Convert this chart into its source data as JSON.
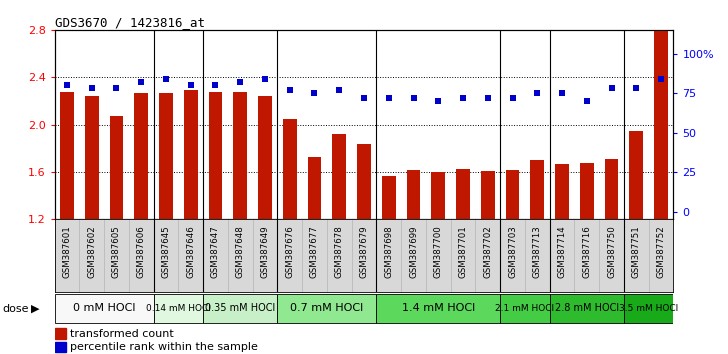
{
  "title": "GDS3670 / 1423816_at",
  "samples": [
    "GSM387601",
    "GSM387602",
    "GSM387605",
    "GSM387606",
    "GSM387645",
    "GSM387646",
    "GSM387647",
    "GSM387648",
    "GSM387649",
    "GSM387676",
    "GSM387677",
    "GSM387678",
    "GSM387679",
    "GSM387698",
    "GSM387699",
    "GSM387700",
    "GSM387701",
    "GSM387702",
    "GSM387703",
    "GSM387713",
    "GSM387714",
    "GSM387716",
    "GSM387750",
    "GSM387751",
    "GSM387752"
  ],
  "bar_values": [
    2.28,
    2.24,
    2.07,
    2.27,
    2.27,
    2.29,
    2.28,
    2.28,
    2.24,
    2.05,
    1.73,
    1.92,
    1.84,
    1.57,
    1.62,
    1.6,
    1.63,
    1.61,
    1.62,
    1.7,
    1.67,
    1.68,
    1.71,
    1.95,
    2.8
  ],
  "percentile_values": [
    80,
    78,
    78,
    82,
    84,
    80,
    80,
    82,
    84,
    77,
    75,
    77,
    72,
    72,
    72,
    70,
    72,
    72,
    72,
    75,
    75,
    70,
    78,
    78,
    84
  ],
  "group_labels": [
    "0 mM HOCl",
    "0.14 mM HOCl",
    "0.35 mM HOCl",
    "0.7 mM HOCl",
    "1.4 mM HOCl",
    "2.1 mM HOCl",
    "2.8 mM HOCl",
    "3.5 mM HOCl"
  ],
  "group_counts": [
    4,
    2,
    3,
    4,
    5,
    2,
    3,
    2
  ],
  "group_colors": [
    "#f8f8f8",
    "#dff8df",
    "#c8f0c8",
    "#90e890",
    "#5cd85c",
    "#44cc44",
    "#2ebc2e",
    "#18aa18"
  ],
  "ylim": [
    1.2,
    2.8
  ],
  "yticks": [
    1.2,
    1.6,
    2.0,
    2.4,
    2.8
  ],
  "right_yticks": [
    0,
    25,
    50,
    75,
    100
  ],
  "right_ytick_labels": [
    "0",
    "25",
    "50",
    "75",
    "100%"
  ],
  "bar_color": "#c01800",
  "dot_color": "#0000cc",
  "sample_bg_color": "#d8d8d8",
  "dose_text": "dose"
}
